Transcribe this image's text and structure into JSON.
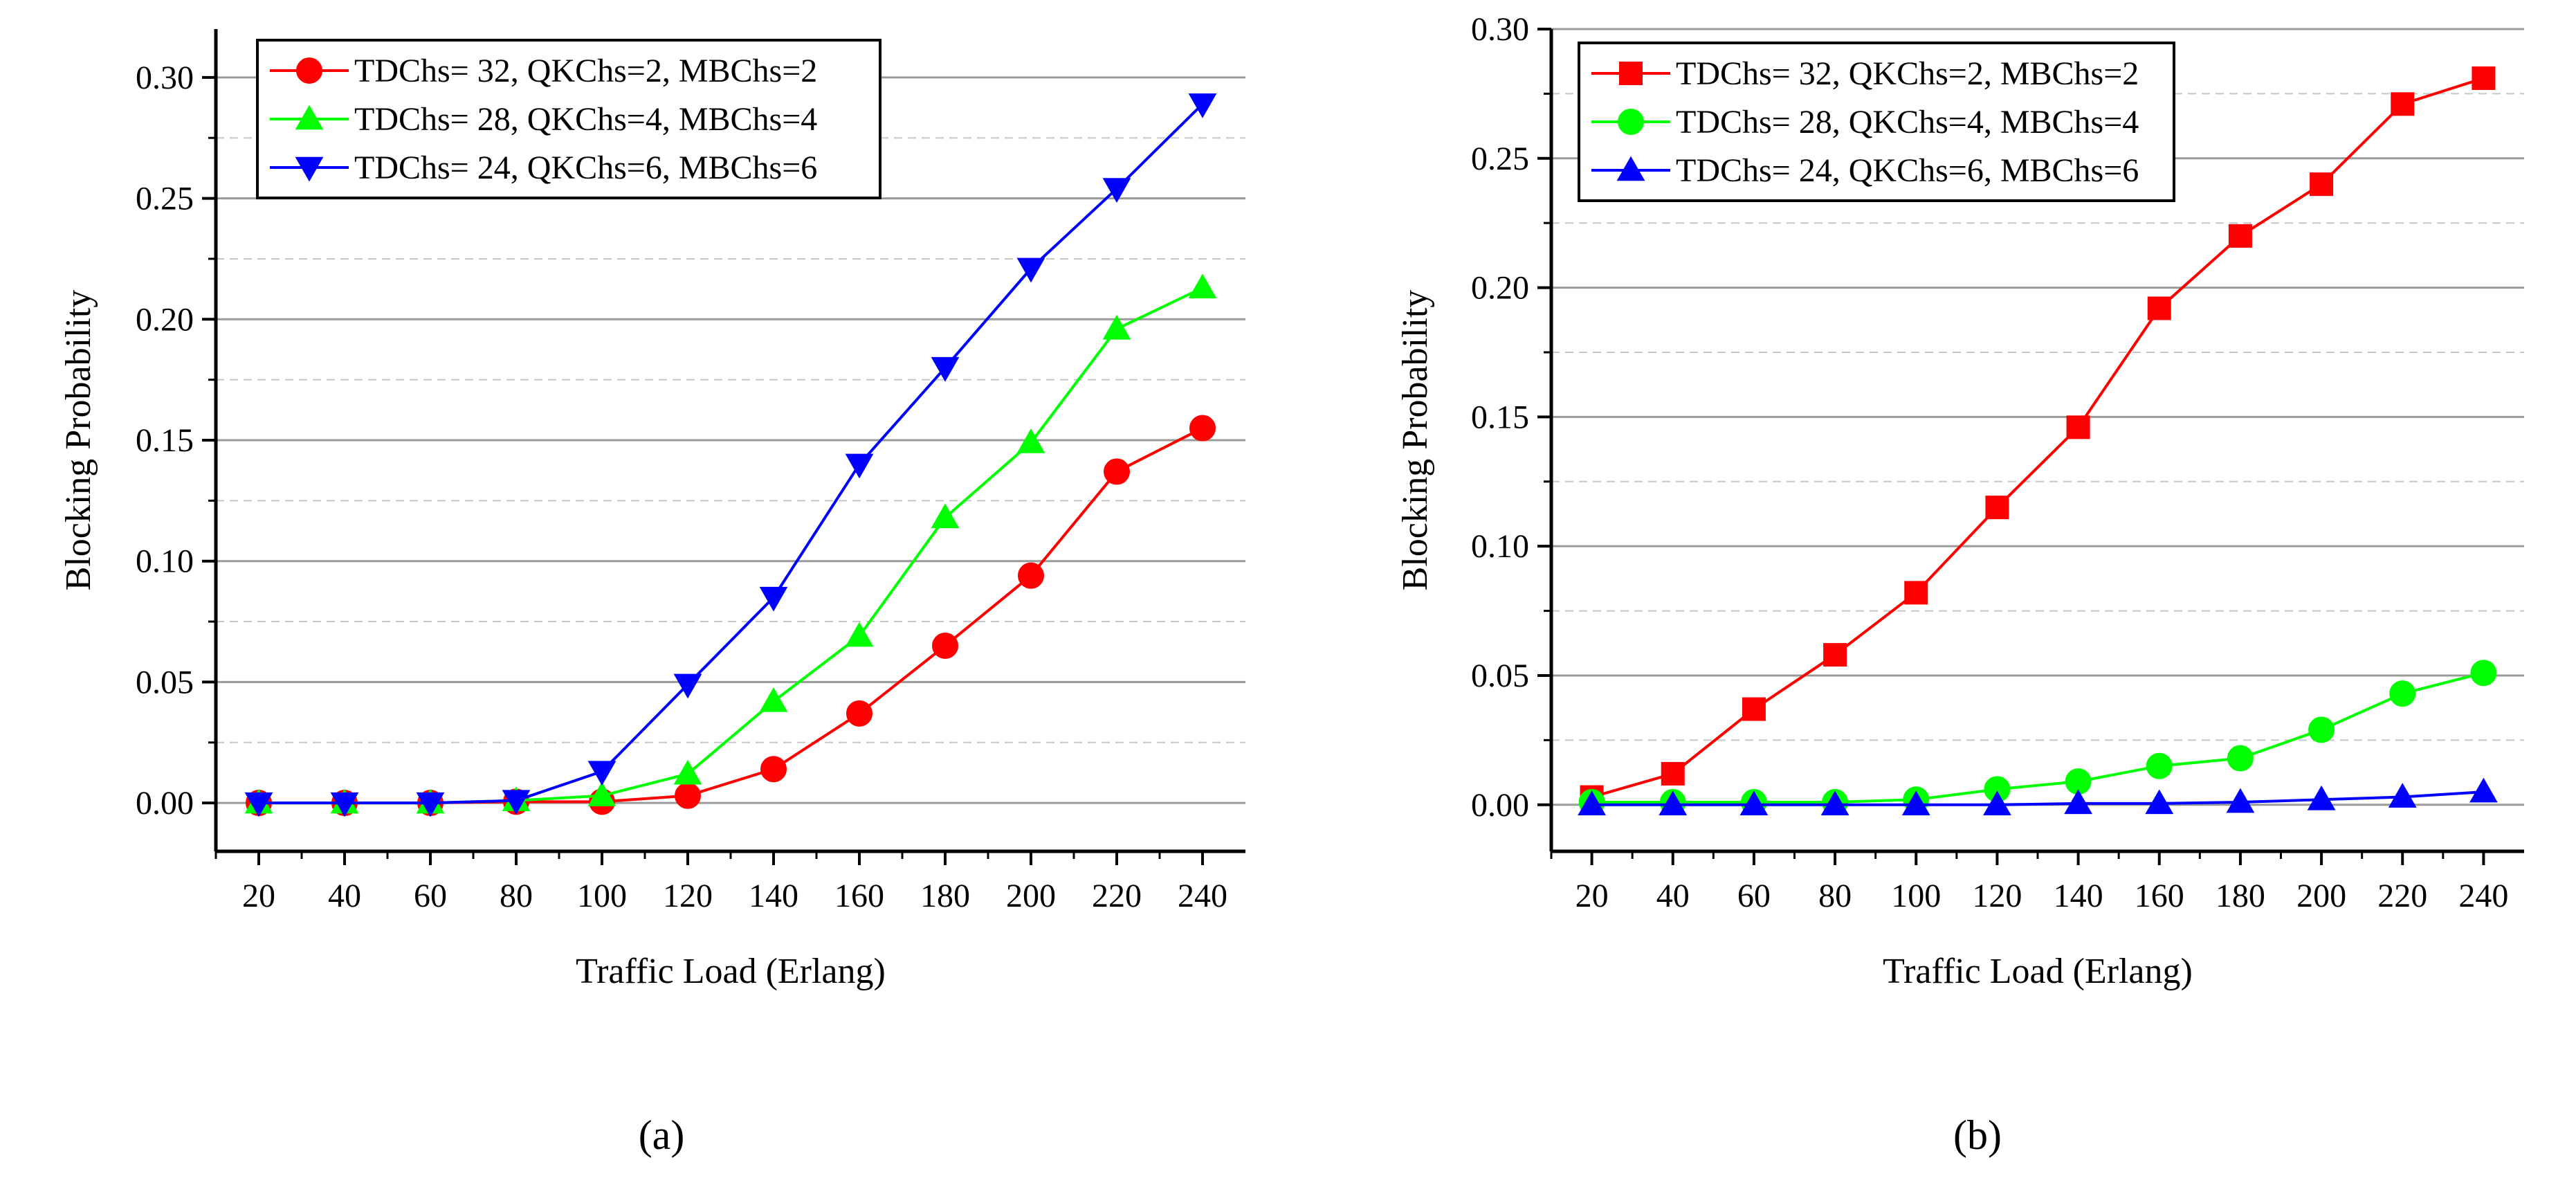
{
  "chart_data": [
    {
      "type": "line",
      "panel_label": "(a)",
      "title": "",
      "xlabel": "Traffic Load (Erlang)",
      "ylabel": "Blocking Probability",
      "x": [
        20,
        40,
        60,
        80,
        100,
        120,
        140,
        160,
        180,
        200,
        220,
        240
      ],
      "xlim": [
        10,
        250
      ],
      "ylim": [
        -0.02,
        0.32
      ],
      "yticks": [
        "0.00",
        "0.05",
        "0.10",
        "0.15",
        "0.20",
        "0.25",
        "0.30"
      ],
      "grid": true,
      "legend_position": "top-left",
      "series": [
        {
          "name": "TDChs= 32, QKChs=2, MBChs=2",
          "color": "#ff0000",
          "marker": "circle",
          "values": [
            0,
            0,
            0,
            0.0005,
            0.0005,
            0.003,
            0.014,
            0.037,
            0.065,
            0.094,
            0.137,
            0.155
          ]
        },
        {
          "name": "TDChs= 28, QKChs=4, MBChs=4",
          "color": "#00ff00",
          "marker": "triangle-up",
          "values": [
            0,
            0,
            0,
            0.001,
            0.003,
            0.012,
            0.042,
            0.069,
            0.118,
            0.149,
            0.196,
            0.213
          ]
        },
        {
          "name": "TDChs= 24, QKChs=6, MBChs=6",
          "color": "#0000ff",
          "marker": "triangle-down",
          "values": [
            0,
            0,
            0,
            0.001,
            0.013,
            0.049,
            0.085,
            0.14,
            0.18,
            0.221,
            0.254,
            0.289
          ]
        }
      ]
    },
    {
      "type": "line",
      "panel_label": "(b)",
      "title": "",
      "xlabel": "Traffic Load (Erlang)",
      "ylabel": "Blocking Probability",
      "x": [
        20,
        40,
        60,
        80,
        100,
        120,
        140,
        160,
        180,
        200,
        220,
        240
      ],
      "xlim": [
        10,
        250
      ],
      "ylim": [
        -0.018,
        0.3
      ],
      "yticks": [
        "0.00",
        "0.05",
        "0.10",
        "0.15",
        "0.20",
        "0.25",
        "0.30"
      ],
      "grid": true,
      "legend_position": "top-left",
      "series": [
        {
          "name": "TDChs= 32, QKChs=2, MBChs=2",
          "color": "#ff0000",
          "marker": "square",
          "values": [
            0.003,
            0.012,
            0.037,
            0.058,
            0.082,
            0.115,
            0.146,
            0.192,
            0.22,
            0.24,
            0.271,
            0.281
          ]
        },
        {
          "name": "TDChs= 28, QKChs=4, MBChs=4",
          "color": "#00ff00",
          "marker": "circle",
          "values": [
            0.001,
            0.001,
            0.001,
            0.001,
            0.002,
            0.006,
            0.009,
            0.015,
            0.018,
            0.029,
            0.043,
            0.051
          ]
        },
        {
          "name": "TDChs= 24, QKChs=6, MBChs=6",
          "color": "#0000ff",
          "marker": "triangle-up",
          "values": [
            0,
            0,
            0,
            0,
            0,
            0,
            0.0005,
            0.0005,
            0.001,
            0.002,
            0.003,
            0.005
          ]
        }
      ]
    }
  ]
}
